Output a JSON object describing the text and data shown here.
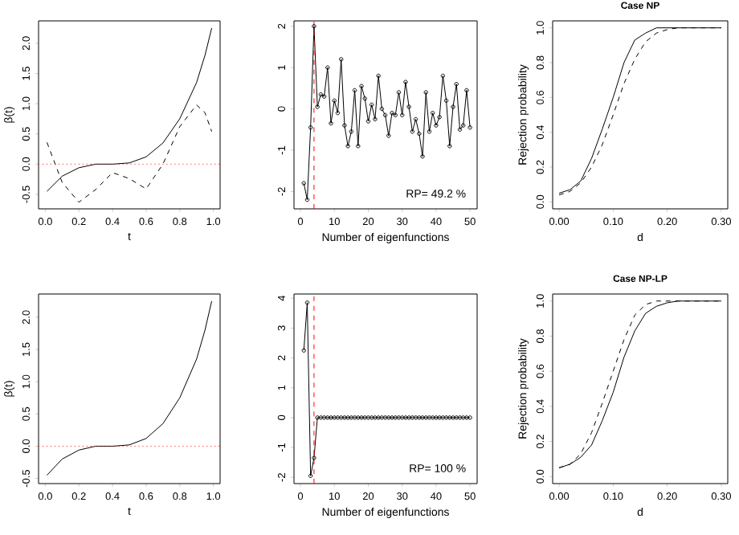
{
  "chart_data": [
    {
      "type": "line",
      "xlabel": "t",
      "ylabel": "β(t)",
      "xlim": [
        -0.04,
        1.04
      ],
      "ylim": [
        -0.74,
        2.37
      ],
      "xticks": [
        {
          "value": 0,
          "label": "0.0"
        },
        0.2,
        0.4,
        0.6,
        0.8,
        {
          "value": 1,
          "label": "1.0"
        }
      ],
      "yticks": [
        -0.5,
        {
          "value": 0,
          "label": "0.0"
        },
        0.5,
        {
          "value": 1,
          "label": "1.0"
        },
        1.5,
        {
          "value": 2,
          "label": "2.0"
        }
      ],
      "series": [
        {
          "color": "#000000",
          "line_style": "solid",
          "x": [
            0.01,
            0.1,
            0.2,
            0.3,
            0.4,
            0.5,
            0.6,
            0.7,
            0.8,
            0.9,
            0.95,
            0.99
          ],
          "values": [
            -0.45,
            -0.2,
            -0.06,
            0.0,
            0.0,
            0.02,
            0.12,
            0.35,
            0.75,
            1.35,
            1.8,
            2.25
          ]
        },
        {
          "color": "#000000",
          "line_style": "dashed",
          "x": [
            0.01,
            0.1,
            0.2,
            0.3,
            0.4,
            0.5,
            0.6,
            0.7,
            0.8,
            0.9,
            0.95,
            0.99
          ],
          "values": [
            0.36,
            -0.3,
            -0.63,
            -0.42,
            -0.14,
            -0.24,
            -0.41,
            0.0,
            0.62,
            0.98,
            0.85,
            0.54
          ]
        }
      ],
      "ref_lines": [
        {
          "axis": "y",
          "value": 0,
          "color": "#ff0000",
          "line_style": "dotted"
        }
      ]
    },
    {
      "type": "line",
      "xlabel": "Number of eigenfunctions",
      "xlim": [
        -1.9,
        52.1
      ],
      "ylim": [
        -2.42,
        2.13
      ],
      "xticks": [
        0,
        10,
        20,
        30,
        40,
        50
      ],
      "yticks": [
        -2,
        -1,
        0,
        1,
        2
      ],
      "marker": "circle",
      "x": [
        1,
        2,
        3,
        4,
        5,
        6,
        7,
        8,
        9,
        10,
        11,
        12,
        13,
        14,
        15,
        16,
        17,
        18,
        19,
        20,
        21,
        22,
        23,
        24,
        25,
        26,
        27,
        28,
        29,
        30,
        31,
        32,
        33,
        34,
        35,
        36,
        37,
        38,
        39,
        40,
        41,
        42,
        43,
        44,
        45,
        46,
        47,
        48,
        49,
        50
      ],
      "series": [
        {
          "color": "#000000",
          "line_style": "solid",
          "values": [
            -1.8,
            -2.2,
            -0.45,
            2.0,
            0.05,
            0.35,
            0.3,
            1.0,
            -0.35,
            0.2,
            -0.1,
            1.2,
            -0.4,
            -0.9,
            -0.55,
            0.45,
            -0.9,
            0.55,
            0.25,
            -0.3,
            0.1,
            -0.25,
            0.8,
            0.0,
            -0.15,
            -0.65,
            -0.1,
            -0.15,
            0.4,
            -0.15,
            0.65,
            0.05,
            -0.55,
            -0.25,
            -0.6,
            -1.15,
            0.4,
            -0.55,
            -0.1,
            -0.4,
            -0.2,
            0.8,
            0.2,
            -0.9,
            0.05,
            0.6,
            -0.5,
            -0.4,
            0.45,
            -0.45
          ]
        }
      ],
      "ref_lines": [
        {
          "axis": "x",
          "value": 4,
          "color": "#ff0000",
          "line_style": "dashed"
        }
      ],
      "annotations": [
        "RP= 49.2 %"
      ]
    },
    {
      "type": "line",
      "title": "Case NP",
      "xlabel": "d",
      "ylabel": "Rejection probability",
      "xlim": [
        -0.012,
        0.312
      ],
      "ylim": [
        -0.04,
        1.04
      ],
      "xticks": [
        {
          "value": 0,
          "label": "0.00"
        },
        {
          "value": 0.1,
          "label": "0.10"
        },
        {
          "value": 0.2,
          "label": "0.20"
        },
        {
          "value": 0.3,
          "label": "0.30"
        }
      ],
      "yticks": [
        {
          "value": 0,
          "label": "0.0"
        },
        0.2,
        0.4,
        0.6,
        0.8,
        {
          "value": 1,
          "label": "1.0"
        }
      ],
      "series": [
        {
          "color": "#000000",
          "line_style": "solid",
          "x": [
            0,
            0.02,
            0.04,
            0.06,
            0.08,
            0.1,
            0.12,
            0.14,
            0.16,
            0.18,
            0.2,
            0.3
          ],
          "values": [
            0.05,
            0.07,
            0.12,
            0.25,
            0.42,
            0.6,
            0.8,
            0.93,
            0.97,
            1.0,
            1.0,
            1.0
          ]
        },
        {
          "color": "#000000",
          "line_style": "dashed",
          "x": [
            0,
            0.02,
            0.04,
            0.06,
            0.08,
            0.1,
            0.12,
            0.14,
            0.16,
            0.18,
            0.2,
            0.22,
            0.3
          ],
          "values": [
            0.04,
            0.06,
            0.11,
            0.2,
            0.33,
            0.5,
            0.68,
            0.82,
            0.92,
            0.97,
            0.99,
            1.0,
            1.0
          ]
        }
      ]
    },
    {
      "type": "line",
      "xlabel": "t",
      "ylabel": "β(t)",
      "xlim": [
        -0.04,
        1.04
      ],
      "ylim": [
        -0.58,
        2.36
      ],
      "xticks": [
        {
          "value": 0,
          "label": "0.0"
        },
        0.2,
        0.4,
        0.6,
        0.8,
        {
          "value": 1,
          "label": "1.0"
        }
      ],
      "yticks": [
        -0.5,
        {
          "value": 0,
          "label": "0.0"
        },
        0.5,
        {
          "value": 1,
          "label": "1.0"
        },
        1.5,
        {
          "value": 2,
          "label": "2.0"
        }
      ],
      "series": [
        {
          "color": "#000000",
          "line_style": "solid",
          "x": [
            0.01,
            0.1,
            0.2,
            0.3,
            0.4,
            0.5,
            0.6,
            0.7,
            0.8,
            0.9,
            0.95,
            0.99
          ],
          "values": [
            -0.45,
            -0.2,
            -0.06,
            0.0,
            0.0,
            0.02,
            0.12,
            0.35,
            0.75,
            1.35,
            1.8,
            2.25
          ]
        }
      ],
      "ref_lines": [
        {
          "axis": "y",
          "value": 0,
          "color": "#ff0000",
          "line_style": "dotted"
        }
      ]
    },
    {
      "type": "line",
      "xlabel": "Number of eigenfunctions",
      "xlim": [
        -1.9,
        52.1
      ],
      "ylim": [
        -2.21,
        4.14
      ],
      "xticks": [
        0,
        10,
        20,
        30,
        40,
        50
      ],
      "yticks": [
        -2,
        -1,
        0,
        1,
        2,
        3,
        4
      ],
      "marker": "circle",
      "x": [
        1,
        2,
        3,
        4,
        5,
        6,
        7,
        8,
        9,
        10,
        11,
        12,
        13,
        14,
        15,
        16,
        17,
        18,
        19,
        20,
        21,
        22,
        23,
        24,
        25,
        26,
        27,
        28,
        29,
        30,
        31,
        32,
        33,
        34,
        35,
        36,
        37,
        38,
        39,
        40,
        41,
        42,
        43,
        44,
        45,
        46,
        47,
        48,
        49,
        50
      ],
      "series": [
        {
          "color": "#000000",
          "line_style": "solid",
          "values": [
            2.25,
            3.85,
            -1.95,
            -1.35,
            0,
            0,
            0,
            0,
            0,
            0,
            0,
            0,
            0,
            0,
            0,
            0,
            0,
            0,
            0,
            0,
            0,
            0,
            0,
            0,
            0,
            0,
            0,
            0,
            0,
            0,
            0,
            0,
            0,
            0,
            0,
            0,
            0,
            0,
            0,
            0,
            0,
            0,
            0,
            0,
            0,
            0,
            0,
            0,
            0,
            0
          ]
        }
      ],
      "ref_lines": [
        {
          "axis": "x",
          "value": 4,
          "color": "#ff0000",
          "line_style": "dashed"
        }
      ],
      "annotations": [
        "RP= 100 %"
      ]
    },
    {
      "type": "line",
      "title": "Case NP-LP",
      "xlabel": "d",
      "ylabel": "Rejection probability",
      "xlim": [
        -0.012,
        0.312
      ],
      "ylim": [
        -0.04,
        1.04
      ],
      "xticks": [
        {
          "value": 0,
          "label": "0.00"
        },
        {
          "value": 0.1,
          "label": "0.10"
        },
        {
          "value": 0.2,
          "label": "0.20"
        },
        {
          "value": 0.3,
          "label": "0.30"
        }
      ],
      "yticks": [
        {
          "value": 0,
          "label": "0.0"
        },
        0.2,
        0.4,
        0.6,
        0.8,
        {
          "value": 1,
          "label": "1.0"
        }
      ],
      "series": [
        {
          "color": "#000000",
          "line_style": "solid",
          "x": [
            0,
            0.02,
            0.04,
            0.06,
            0.08,
            0.1,
            0.12,
            0.14,
            0.16,
            0.18,
            0.2,
            0.22,
            0.3
          ],
          "values": [
            0.05,
            0.07,
            0.11,
            0.18,
            0.32,
            0.48,
            0.68,
            0.83,
            0.93,
            0.97,
            0.99,
            1.0,
            1.0
          ]
        },
        {
          "color": "#000000",
          "line_style": "dashed",
          "x": [
            0,
            0.02,
            0.04,
            0.06,
            0.08,
            0.1,
            0.12,
            0.14,
            0.16,
            0.18,
            0.2,
            0.3
          ],
          "values": [
            0.05,
            0.07,
            0.13,
            0.25,
            0.42,
            0.6,
            0.78,
            0.92,
            0.98,
            1.0,
            1.0,
            1.0
          ]
        }
      ]
    }
  ]
}
